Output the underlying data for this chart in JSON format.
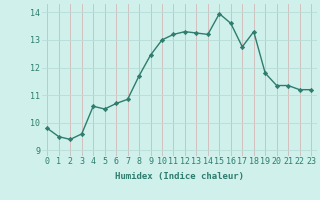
{
  "x": [
    0,
    1,
    2,
    3,
    4,
    5,
    6,
    7,
    8,
    9,
    10,
    11,
    12,
    13,
    14,
    15,
    16,
    17,
    18,
    19,
    20,
    21,
    22,
    23
  ],
  "y": [
    9.8,
    9.5,
    9.4,
    9.6,
    10.6,
    10.5,
    10.7,
    10.85,
    11.7,
    12.45,
    13.0,
    13.2,
    13.3,
    13.25,
    13.2,
    13.95,
    13.6,
    12.75,
    13.3,
    11.8,
    11.35,
    11.35,
    11.2,
    11.2
  ],
  "line_color": "#2e7d6e",
  "marker": "D",
  "marker_size": 2.2,
  "bg_color": "#cff0eb",
  "grid_color_major": "#b8ddd8",
  "grid_color_minor": "#c8eae5",
  "xlabel": "Humidex (Indice chaleur)",
  "xlim": [
    -0.5,
    23.5
  ],
  "ylim": [
    8.8,
    14.3
  ],
  "yticks": [
    9,
    10,
    11,
    12,
    13,
    14
  ],
  "xticks": [
    0,
    1,
    2,
    3,
    4,
    5,
    6,
    7,
    8,
    9,
    10,
    11,
    12,
    13,
    14,
    15,
    16,
    17,
    18,
    19,
    20,
    21,
    22,
    23
  ],
  "xlabel_fontsize": 6.5,
  "tick_fontsize": 6.0,
  "line_width": 1.0,
  "label_color": "#2e7d6e"
}
